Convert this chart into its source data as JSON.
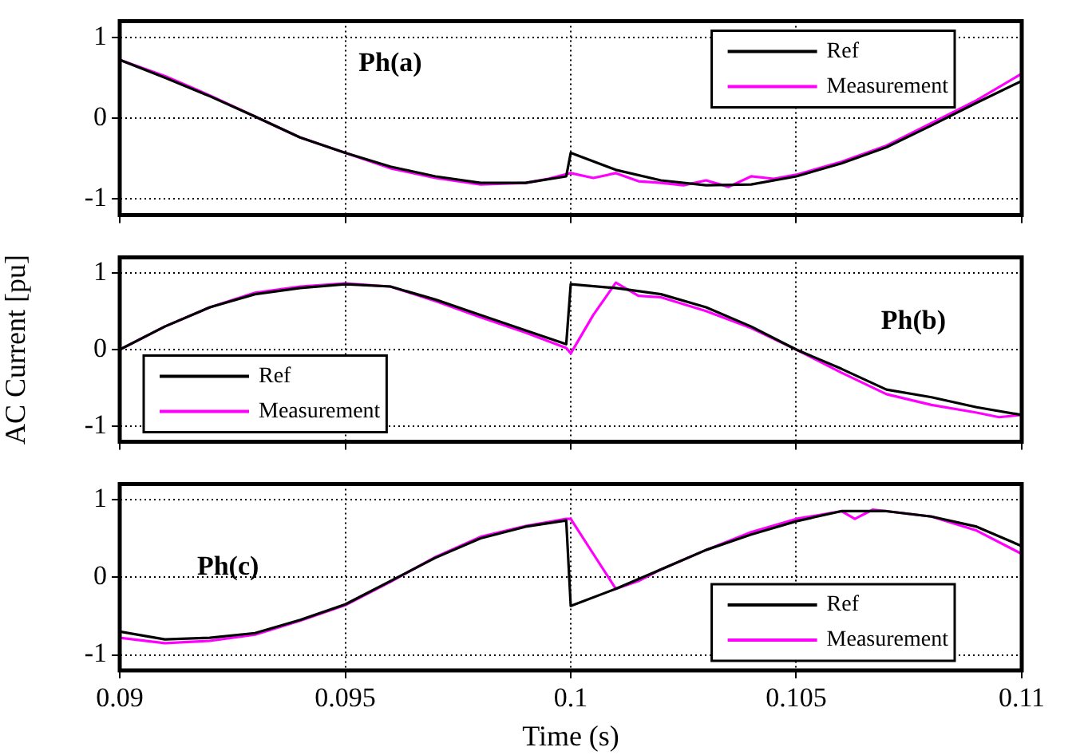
{
  "chart_data": [
    {
      "type": "line",
      "annotations": [
        "Ph(a)"
      ],
      "ylim": [
        -1.2,
        1.2
      ],
      "yticks": [
        -1,
        0,
        1
      ],
      "xlim": [
        0.09,
        0.11
      ],
      "xticks": [
        0.09,
        0.095,
        0.1,
        0.105,
        0.11
      ],
      "grid": true,
      "legend": "top right",
      "tick_labels": "y",
      "series": [
        {
          "name": "Ref",
          "color": "#000000",
          "x": [
            0.09,
            0.091,
            0.092,
            0.093,
            0.094,
            0.095,
            0.096,
            0.097,
            0.098,
            0.099,
            0.0999,
            0.1,
            0.101,
            0.102,
            0.103,
            0.104,
            0.105,
            0.106,
            0.107,
            0.108,
            0.109,
            0.11
          ],
          "values": [
            0.72,
            0.5,
            0.27,
            0.02,
            -0.24,
            -0.43,
            -0.6,
            -0.72,
            -0.8,
            -0.8,
            -0.72,
            -0.43,
            -0.64,
            -0.77,
            -0.83,
            -0.82,
            -0.72,
            -0.56,
            -0.36,
            -0.09,
            0.19,
            0.46
          ]
        },
        {
          "name": "Measurement",
          "color": "#ff00ff",
          "x": [
            0.09,
            0.091,
            0.092,
            0.093,
            0.094,
            0.095,
            0.096,
            0.097,
            0.098,
            0.099,
            0.0995,
            0.1,
            0.1005,
            0.101,
            0.1015,
            0.102,
            0.1025,
            0.103,
            0.1035,
            0.104,
            0.1045,
            0.105,
            0.106,
            0.107,
            0.108,
            0.109,
            0.11
          ],
          "values": [
            0.72,
            0.52,
            0.28,
            0.02,
            -0.24,
            -0.43,
            -0.62,
            -0.74,
            -0.82,
            -0.8,
            -0.75,
            -0.68,
            -0.74,
            -0.68,
            -0.78,
            -0.8,
            -0.83,
            -0.77,
            -0.85,
            -0.72,
            -0.75,
            -0.7,
            -0.54,
            -0.34,
            -0.06,
            0.22,
            0.55
          ]
        }
      ]
    },
    {
      "type": "line",
      "annotations": [
        "Ph(b)"
      ],
      "ylabel": "AC Current [pu]",
      "ylim": [
        -1.2,
        1.2
      ],
      "yticks": [
        -1,
        0,
        1
      ],
      "xlim": [
        0.09,
        0.11
      ],
      "xticks": [
        0.09,
        0.095,
        0.1,
        0.105,
        0.11
      ],
      "grid": true,
      "legend": "bottom left",
      "tick_labels": "y",
      "series": [
        {
          "name": "Ref",
          "color": "#000000",
          "x": [
            0.09,
            0.091,
            0.092,
            0.093,
            0.094,
            0.095,
            0.096,
            0.097,
            0.098,
            0.099,
            0.0999,
            0.1,
            0.101,
            0.102,
            0.103,
            0.104,
            0.105,
            0.106,
            0.107,
            0.108,
            0.109,
            0.11
          ],
          "values": [
            0.0,
            0.3,
            0.55,
            0.72,
            0.8,
            0.85,
            0.82,
            0.65,
            0.45,
            0.25,
            0.07,
            0.85,
            0.8,
            0.72,
            0.55,
            0.3,
            0.0,
            -0.25,
            -0.52,
            -0.62,
            -0.75,
            -0.85
          ]
        },
        {
          "name": "Measurement",
          "color": "#ff00ff",
          "x": [
            0.09,
            0.091,
            0.092,
            0.093,
            0.094,
            0.095,
            0.096,
            0.097,
            0.098,
            0.099,
            0.0999,
            0.1,
            0.1005,
            0.101,
            0.1015,
            0.102,
            0.103,
            0.104,
            0.105,
            0.106,
            0.107,
            0.108,
            0.109,
            0.1095,
            0.11
          ],
          "values": [
            0.0,
            0.3,
            0.55,
            0.74,
            0.82,
            0.86,
            0.82,
            0.63,
            0.42,
            0.22,
            0.02,
            -0.05,
            0.45,
            0.87,
            0.7,
            0.68,
            0.5,
            0.28,
            0.0,
            -0.3,
            -0.58,
            -0.72,
            -0.82,
            -0.88,
            -0.85
          ]
        }
      ]
    },
    {
      "type": "line",
      "annotations": [
        "Ph(c)"
      ],
      "xlabel": "Time (s)",
      "ylim": [
        -1.2,
        1.2
      ],
      "yticks": [
        -1,
        0,
        1
      ],
      "xlim": [
        0.09,
        0.11
      ],
      "xticks": [
        0.09,
        0.095,
        0.1,
        0.105,
        0.11
      ],
      "grid": true,
      "legend": "bottom right",
      "series": [
        {
          "name": "Ref",
          "color": "#000000",
          "x": [
            0.09,
            0.091,
            0.092,
            0.093,
            0.094,
            0.095,
            0.096,
            0.097,
            0.098,
            0.099,
            0.0999,
            0.1,
            0.101,
            0.102,
            0.103,
            0.104,
            0.105,
            0.106,
            0.107,
            0.108,
            0.109,
            0.11
          ],
          "values": [
            -0.7,
            -0.8,
            -0.78,
            -0.72,
            -0.55,
            -0.35,
            -0.05,
            0.25,
            0.5,
            0.65,
            0.73,
            -0.37,
            -0.15,
            0.1,
            0.35,
            0.55,
            0.72,
            0.85,
            0.85,
            0.78,
            0.65,
            0.4
          ]
        },
        {
          "name": "Measurement",
          "color": "#ff00ff",
          "x": [
            0.09,
            0.091,
            0.092,
            0.093,
            0.094,
            0.095,
            0.096,
            0.097,
            0.098,
            0.099,
            0.0999,
            0.1,
            0.1005,
            0.101,
            0.1015,
            0.102,
            0.103,
            0.104,
            0.105,
            0.106,
            0.1063,
            0.1067,
            0.108,
            0.109,
            0.11
          ],
          "values": [
            -0.78,
            -0.85,
            -0.82,
            -0.74,
            -0.56,
            -0.36,
            -0.06,
            0.26,
            0.52,
            0.66,
            0.75,
            0.75,
            0.3,
            -0.15,
            -0.05,
            0.1,
            0.35,
            0.58,
            0.75,
            0.85,
            0.75,
            0.87,
            0.78,
            0.6,
            0.3
          ]
        }
      ]
    }
  ]
}
